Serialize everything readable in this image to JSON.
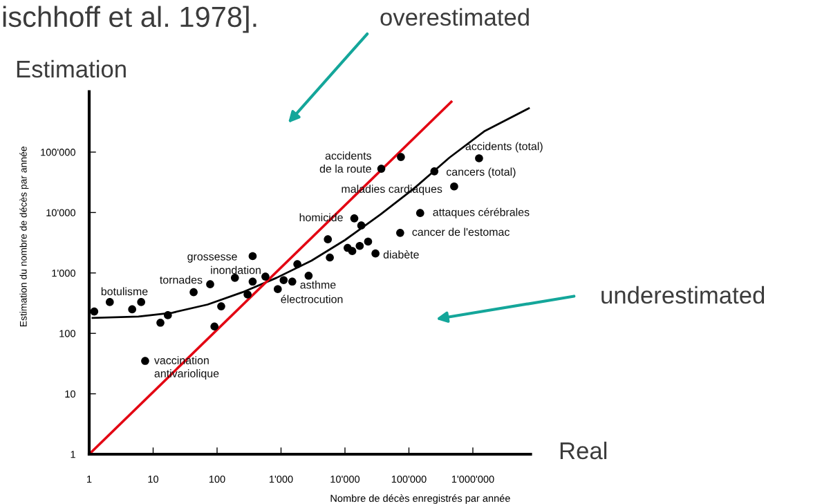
{
  "chart_data": {
    "type": "scatter",
    "title": "ischhoff et al. 1978].",
    "xlabel": "Nombre de décès enregistrés par année",
    "ylabel": "Estimation du nombre de décès par année",
    "log": "xy",
    "grid": false,
    "xlim": [
      1,
      8000000
    ],
    "ylim": [
      1,
      1000000
    ],
    "xticks": [
      1,
      10,
      100,
      {
        "value": 1000,
        "label": "1'000"
      },
      {
        "value": 10000,
        "label": "10'000"
      },
      {
        "value": 100000,
        "label": "100'000"
      },
      {
        "value": 1000000,
        "label": "1'000'000"
      }
    ],
    "yticks": [
      1,
      10,
      100,
      {
        "value": 1000,
        "label": "1'000"
      },
      {
        "value": 10000,
        "label": "10'000"
      },
      {
        "value": 100000,
        "label": "100'000"
      }
    ],
    "series": [
      {
        "marker": "circle",
        "color": "#000000",
        "x": [
          1.2,
          2.1,
          4.7,
          6.5,
          13,
          17,
          7.5,
          43,
          78,
          91,
          116,
          190,
          360,
          360,
          300,
          570,
          890,
          1100,
          1500,
          1800,
          2700,
          5400,
          5800,
          11000,
          13000,
          17000,
          23000,
          30000,
          14000,
          18000,
          37000,
          75000,
          73000,
          150000,
          250000,
          510000,
          1250000
        ],
        "values": [
          230,
          330,
          250,
          330,
          150,
          200,
          35,
          480,
          650,
          130,
          280,
          830,
          1900,
          720,
          440,
          870,
          540,
          760,
          720,
          1400,
          900,
          3600,
          1800,
          2600,
          2300,
          2800,
          3300,
          2100,
          8000,
          6100,
          53000,
          83000,
          4600,
          9800,
          48000,
          27000,
          79000
        ]
      },
      {
        "type": "line",
        "color": "#000000",
        "x": [
          1.13,
          5.9,
          20,
          71,
          250,
          850,
          3000,
          10000,
          36000,
          120000,
          430000,
          1500000,
          7500000
        ],
        "values": [
          180,
          190,
          220,
          300,
          480,
          830,
          1600,
          3500,
          9300,
          25000,
          81000,
          220000,
          530000
        ]
      },
      {
        "type": "line",
        "color": "#e30613",
        "x": [
          1,
          460000
        ],
        "values": [
          1,
          680000
        ]
      }
    ],
    "annotations": [
      {
        "text": "botulisme",
        "x": 2.1,
        "y": 330
      },
      {
        "text": "tornades",
        "x": 78,
        "y": 650
      },
      {
        "text": "grossesse",
        "x": 360,
        "y": 1900
      },
      {
        "text": "inondation",
        "x": 570,
        "y": 870
      },
      {
        "text": "vaccination\nantivariolique",
        "x": 7.5,
        "y": 35
      },
      {
        "text": "asthme",
        "x": 1500,
        "y": 720
      },
      {
        "text": "électrocution",
        "x": 890,
        "y": 540
      },
      {
        "text": "homicide",
        "x": 14000,
        "y": 8000
      },
      {
        "text": "accidents\nde la route",
        "x": 37000,
        "y": 53000
      },
      {
        "text": "maladies cardiaques",
        "x": 510000,
        "y": 27000
      },
      {
        "text": "diabète",
        "x": 30000,
        "y": 2100
      },
      {
        "text": "cancer de l'estomac",
        "x": 73000,
        "y": 4600
      },
      {
        "text": "attaques cérébrales",
        "x": 150000,
        "y": 9800
      },
      {
        "text": "cancers (total)",
        "x": 250000,
        "y": 48000
      },
      {
        "text": "accidents (total)",
        "x": 1250000,
        "y": 79000
      },
      "overestimated",
      "underestimated",
      "Real",
      "Estimation"
    ]
  }
}
